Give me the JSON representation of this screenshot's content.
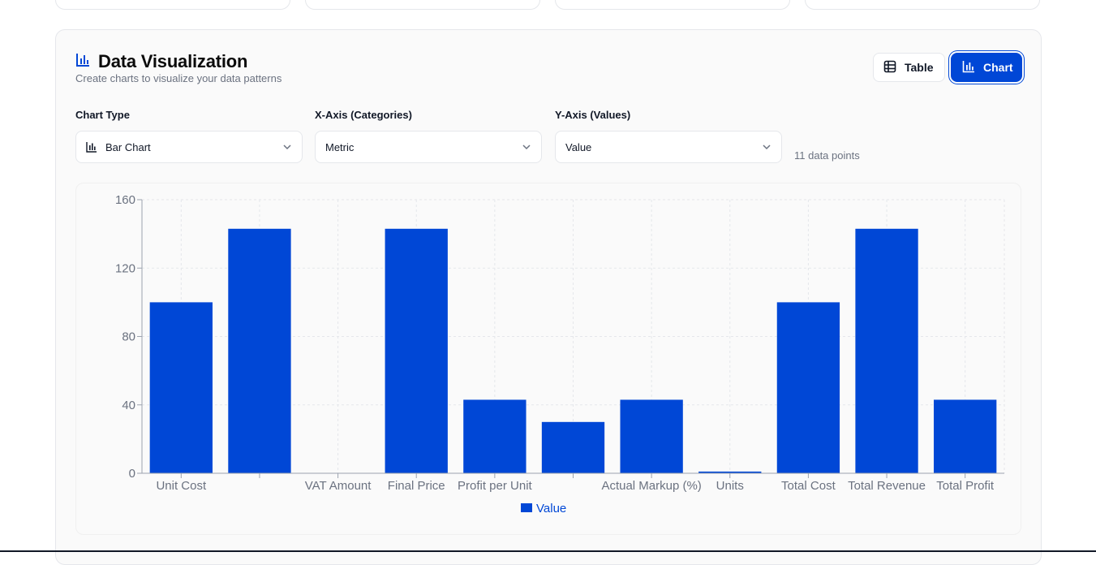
{
  "panel": {
    "title": "Data Visualization",
    "subtitle": "Create charts to visualize your data patterns",
    "title_icon": "bar-chart-icon"
  },
  "view_toggle": {
    "table_label": "Table",
    "chart_label": "Chart",
    "active": "Chart"
  },
  "controls": {
    "chart_type_label": "Chart Type",
    "chart_type_value": "Bar Chart",
    "x_axis_label": "X-Axis (Categories)",
    "x_axis_value": "Metric",
    "y_axis_label": "Y-Axis (Values)",
    "y_axis_value": "Value",
    "points_text": "11 data points"
  },
  "colors": {
    "accent": "#0047d6",
    "grid": "#e5e7eb",
    "axis": "#9ca3af",
    "tick_text": "#6b7280"
  },
  "chart_data": {
    "type": "bar",
    "categories": [
      "Unit Cost",
      "",
      "VAT Amount",
      "Final Price",
      "Profit per Unit",
      "",
      "Actual Markup (%)",
      "Units",
      "Total Cost",
      "Total Revenue",
      "Total Profit"
    ],
    "series": [
      {
        "name": "Value",
        "values": [
          100,
          143,
          0,
          143,
          43,
          30,
          43,
          1,
          100,
          143,
          43
        ]
      }
    ],
    "ylim": [
      0,
      160
    ],
    "yticks": [
      0,
      40,
      80,
      120,
      160
    ],
    "grid": true,
    "legend": "bottom-center"
  }
}
